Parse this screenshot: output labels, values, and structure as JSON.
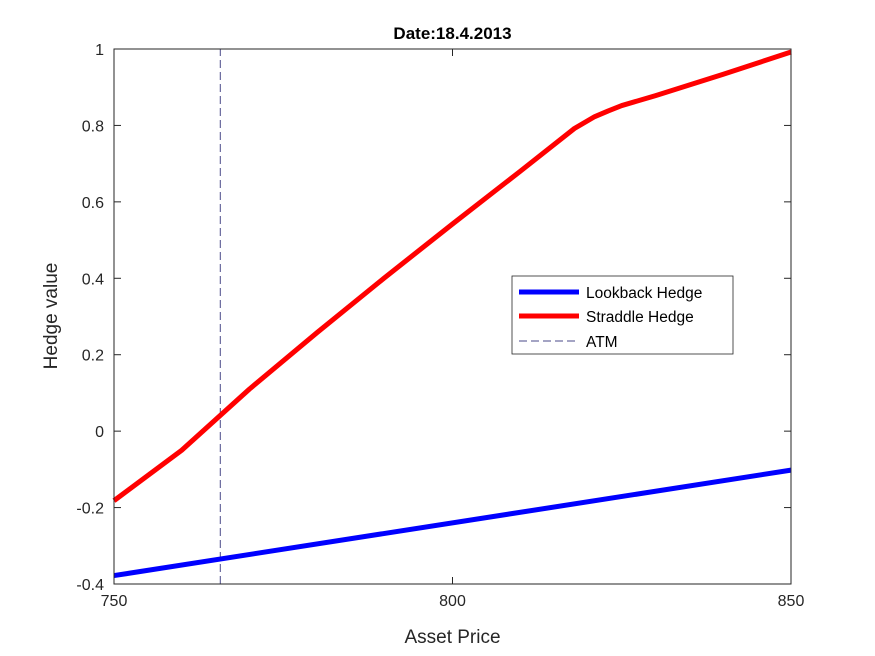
{
  "chart_data": {
    "type": "line",
    "title": "Date:18.4.2013",
    "xlabel": "Asset Price",
    "ylabel": "Hedge value",
    "xlim": [
      750,
      850
    ],
    "ylim": [
      -0.4,
      1
    ],
    "xticks": [
      750,
      800,
      850
    ],
    "yticks": [
      -0.4,
      -0.2,
      0,
      0.2,
      0.4,
      0.6,
      0.8,
      1
    ],
    "xtick_labels": [
      "750",
      "800",
      "850"
    ],
    "ytick_labels": [
      "-0.4",
      "-0.2",
      "0",
      "0.2",
      "0.4",
      "0.6",
      "0.8",
      "1"
    ],
    "grid": false,
    "legend_position": "right",
    "series": [
      {
        "name": "Lookback Hedge",
        "color": "#0000ff",
        "style": "solid",
        "x": [
          750,
          850
        ],
        "y": [
          -0.378,
          -0.102
        ]
      },
      {
        "name": "Straddle Hedge",
        "color": "#ff0000",
        "style": "solid",
        "x": [
          750,
          760,
          770,
          780,
          790,
          800,
          810,
          818,
          821,
          823,
          825,
          830,
          840,
          850
        ],
        "y": [
          -0.182,
          -0.05,
          0.11,
          0.258,
          0.402,
          0.542,
          0.68,
          0.792,
          0.823,
          0.838,
          0.852,
          0.878,
          0.934,
          0.992
        ]
      },
      {
        "name": "ATM",
        "color": "#4a4a8a",
        "style": "dashed",
        "x": [
          765.7,
          765.7
        ],
        "y": [
          -0.4,
          1
        ]
      }
    ]
  }
}
